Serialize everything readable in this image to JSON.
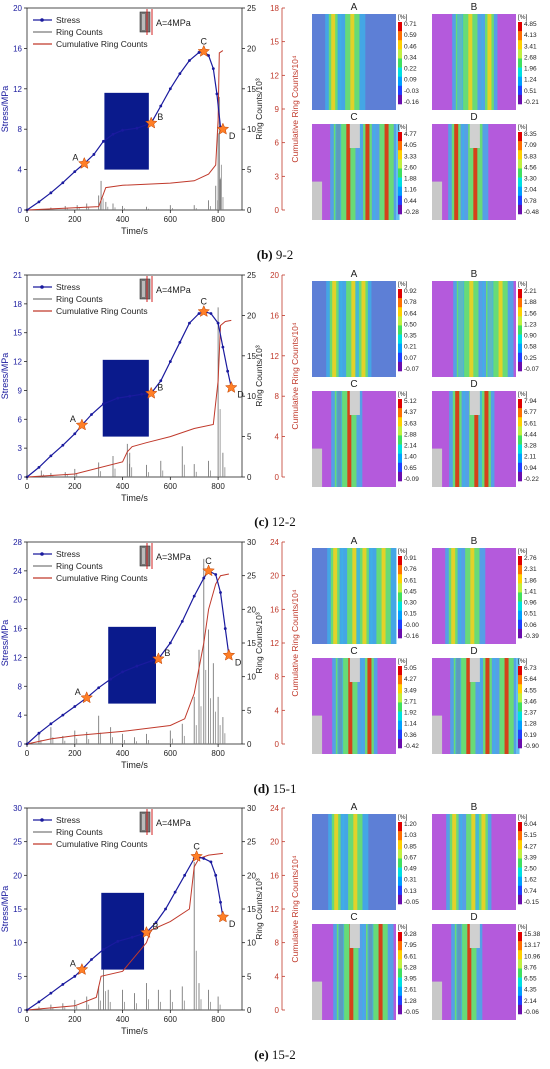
{
  "colors": {
    "stress": "#1a1a9e",
    "ring": "#7a7a7a",
    "cumulative": "#c0392b",
    "star": "#ff7f27",
    "block": "#0a1a8c"
  },
  "legend": {
    "stress": "Stress",
    "ring": "Ring Counts",
    "cumulative": "Cumulative Ring Counts"
  },
  "axes": {
    "xlabel": "Time/s",
    "ylabel_left": "Stress/MPa",
    "ylabel_right1": "Ring Counts/10³",
    "ylabel_right2": "Cumulative Ring Counts/10⁴"
  },
  "colorbar_unit": "[%]",
  "chart_data": [
    {
      "type": "line",
      "caption_label": "(b)",
      "caption_text": "9-2",
      "sigma": "A=4MPa",
      "x_ticks": [
        0,
        200,
        400,
        600,
        800
      ],
      "xlim": [
        0,
        900
      ],
      "ylim_stress": [
        0,
        20
      ],
      "y_ticks_stress": [
        0,
        4,
        8,
        12,
        16,
        20
      ],
      "ylim_ring": [
        0,
        25
      ],
      "y_ticks_ring": [
        0,
        5,
        10,
        15,
        20,
        25
      ],
      "ylim_cum": [
        0,
        18
      ],
      "y_ticks_cum": [
        0,
        3,
        6,
        9,
        12,
        15,
        18
      ],
      "stress_points": [
        [
          0,
          0
        ],
        [
          50,
          0.8
        ],
        [
          100,
          1.7
        ],
        [
          150,
          2.7
        ],
        [
          200,
          3.8
        ],
        [
          240,
          4.6
        ],
        [
          280,
          5.5
        ],
        [
          320,
          6.8
        ],
        [
          360,
          7.5
        ],
        [
          400,
          7.9
        ],
        [
          460,
          8.1
        ],
        [
          520,
          8.6
        ],
        [
          560,
          10.3
        ],
        [
          600,
          12.0
        ],
        [
          640,
          13.5
        ],
        [
          680,
          14.8
        ],
        [
          720,
          15.6
        ],
        [
          740,
          15.7
        ],
        [
          760,
          15.3
        ],
        [
          780,
          14.0
        ],
        [
          795,
          11.5
        ],
        [
          810,
          8.2
        ],
        [
          820,
          8.0
        ]
      ],
      "points": [
        {
          "label": "A",
          "x": 240,
          "y": 4.6
        },
        {
          "label": "B",
          "x": 520,
          "y": 8.6
        },
        {
          "label": "C",
          "x": 740,
          "y": 15.7
        },
        {
          "label": "D",
          "x": 820,
          "y": 8.0
        }
      ],
      "cumulative": [
        [
          0,
          0
        ],
        [
          300,
          0.3
        ],
        [
          330,
          2.0
        ],
        [
          400,
          2.2
        ],
        [
          600,
          2.4
        ],
        [
          700,
          2.6
        ],
        [
          760,
          3.2
        ],
        [
          790,
          4.0
        ],
        [
          800,
          8.0
        ],
        [
          805,
          14.0
        ],
        [
          820,
          14.2
        ]
      ],
      "ring_spikes": [
        [
          100,
          0.3
        ],
        [
          160,
          0.5
        ],
        [
          210,
          0.6
        ],
        [
          250,
          0.8
        ],
        [
          300,
          1.8
        ],
        [
          310,
          3.6
        ],
        [
          330,
          1.0
        ],
        [
          360,
          0.8
        ],
        [
          400,
          0.5
        ],
        [
          500,
          0.4
        ],
        [
          600,
          0.6
        ],
        [
          700,
          0.6
        ],
        [
          760,
          1.2
        ],
        [
          790,
          3.0
        ],
        [
          800,
          9.5
        ],
        [
          805,
          14.0
        ],
        [
          812,
          4.0
        ]
      ],
      "strain_maps": [
        {
          "label": "A",
          "colorbar": [
            "0.71",
            "0.59",
            "0.46",
            "0.34",
            "0.22",
            "0.09",
            "-0.03",
            "-0.16"
          ]
        },
        {
          "label": "B",
          "colorbar": [
            "4.85",
            "4.13",
            "3.41",
            "2.68",
            "1.96",
            "1.24",
            "0.51",
            "-0.21"
          ]
        },
        {
          "label": "C",
          "colorbar": [
            "4.77",
            "4.05",
            "3.33",
            "2.60",
            "1.88",
            "1.16",
            "0.44",
            "-0.28"
          ]
        },
        {
          "label": "D",
          "colorbar": [
            "8.35",
            "7.09",
            "5.83",
            "4.56",
            "3.30",
            "2.04",
            "0.78",
            "-0.48"
          ]
        }
      ]
    },
    {
      "type": "line",
      "caption_label": "(c)",
      "caption_text": "12-2",
      "sigma": "A=4MPa",
      "x_ticks": [
        0,
        200,
        400,
        600,
        800
      ],
      "xlim": [
        0,
        900
      ],
      "ylim_stress": [
        0,
        21
      ],
      "y_ticks_stress": [
        0,
        3,
        6,
        9,
        12,
        15,
        18,
        21
      ],
      "ylim_ring": [
        0,
        25
      ],
      "y_ticks_ring": [
        0,
        5,
        10,
        15,
        20,
        25
      ],
      "ylim_cum": [
        0,
        20
      ],
      "y_ticks_cum": [
        0,
        4,
        8,
        12,
        16,
        20
      ],
      "stress_points": [
        [
          0,
          0
        ],
        [
          50,
          1.0
        ],
        [
          100,
          2.2
        ],
        [
          150,
          3.3
        ],
        [
          200,
          4.5
        ],
        [
          230,
          5.4
        ],
        [
          270,
          6.5
        ],
        [
          320,
          7.6
        ],
        [
          380,
          8.2
        ],
        [
          430,
          8.4
        ],
        [
          480,
          8.6
        ],
        [
          520,
          8.7
        ],
        [
          560,
          10.0
        ],
        [
          600,
          12.0
        ],
        [
          640,
          14.0
        ],
        [
          680,
          16.0
        ],
        [
          720,
          17.0
        ],
        [
          740,
          17.2
        ],
        [
          770,
          17.0
        ],
        [
          800,
          16.0
        ],
        [
          820,
          13.5
        ],
        [
          840,
          11.0
        ],
        [
          855,
          9.3
        ]
      ],
      "points": [
        {
          "label": "A",
          "x": 230,
          "y": 5.4
        },
        {
          "label": "B",
          "x": 520,
          "y": 8.7
        },
        {
          "label": "C",
          "x": 740,
          "y": 17.2
        },
        {
          "label": "D",
          "x": 855,
          "y": 9.3
        }
      ],
      "cumulative": [
        [
          0,
          0
        ],
        [
          200,
          0.3
        ],
        [
          400,
          1.5
        ],
        [
          420,
          2.5
        ],
        [
          440,
          3.0
        ],
        [
          500,
          3.4
        ],
        [
          600,
          4.0
        ],
        [
          700,
          4.8
        ],
        [
          780,
          5.2
        ],
        [
          800,
          9.5
        ],
        [
          810,
          15.0
        ],
        [
          830,
          15.4
        ],
        [
          855,
          15.5
        ]
      ],
      "ring_spikes": [
        [
          60,
          0.8
        ],
        [
          100,
          0.5
        ],
        [
          160,
          0.6
        ],
        [
          200,
          1.0
        ],
        [
          300,
          1.8
        ],
        [
          360,
          2.6
        ],
        [
          420,
          4.1
        ],
        [
          430,
          3.0
        ],
        [
          500,
          1.5
        ],
        [
          560,
          2.0
        ],
        [
          650,
          3.8
        ],
        [
          700,
          1.6
        ],
        [
          760,
          2.0
        ],
        [
          800,
          21.0
        ],
        [
          820,
          3.0
        ]
      ],
      "strain_maps": [
        {
          "label": "A",
          "colorbar": [
            "0.92",
            "0.78",
            "0.64",
            "0.50",
            "0.35",
            "0.21",
            "0.07",
            "-0.07"
          ]
        },
        {
          "label": "B",
          "colorbar": [
            "2.21",
            "1.88",
            "1.56",
            "1.23",
            "0.90",
            "0.58",
            "0.25",
            "-0.07"
          ]
        },
        {
          "label": "C",
          "colorbar": [
            "5.12",
            "4.37",
            "3.63",
            "2.88",
            "2.14",
            "1.40",
            "0.65",
            "-0.09"
          ]
        },
        {
          "label": "D",
          "colorbar": [
            "7.94",
            "6.77",
            "5.61",
            "4.44",
            "3.28",
            "2.11",
            "0.94",
            "-0.22"
          ]
        }
      ]
    },
    {
      "type": "line",
      "caption_label": "(d)",
      "caption_text": "15-1",
      "sigma": "A=3MPa",
      "x_ticks": [
        0,
        200,
        400,
        600,
        800
      ],
      "xlim": [
        0,
        900
      ],
      "ylim_stress": [
        0,
        28
      ],
      "y_ticks_stress": [
        0,
        4,
        8,
        12,
        16,
        20,
        24,
        28
      ],
      "ylim_ring": [
        0,
        30
      ],
      "y_ticks_ring": [
        0,
        5,
        10,
        15,
        20,
        25,
        30
      ],
      "ylim_cum": [
        0,
        24
      ],
      "y_ticks_cum": [
        0,
        4,
        8,
        12,
        16,
        20,
        24
      ],
      "stress_points": [
        [
          0,
          0
        ],
        [
          50,
          1.5
        ],
        [
          100,
          2.8
        ],
        [
          150,
          4.0
        ],
        [
          200,
          5.2
        ],
        [
          250,
          6.4
        ],
        [
          300,
          7.8
        ],
        [
          350,
          9.0
        ],
        [
          400,
          10.0
        ],
        [
          460,
          10.8
        ],
        [
          520,
          11.5
        ],
        [
          550,
          11.8
        ],
        [
          600,
          14.0
        ],
        [
          650,
          17.0
        ],
        [
          700,
          20.5
        ],
        [
          740,
          23.0
        ],
        [
          760,
          24.0
        ],
        [
          790,
          23.5
        ],
        [
          810,
          21.0
        ],
        [
          830,
          16.0
        ],
        [
          845,
          12.3
        ]
      ],
      "points": [
        {
          "label": "A",
          "x": 250,
          "y": 6.4
        },
        {
          "label": "B",
          "x": 550,
          "y": 11.8
        },
        {
          "label": "C",
          "x": 760,
          "y": 24.0
        },
        {
          "label": "D",
          "x": 845,
          "y": 12.3
        }
      ],
      "cumulative": [
        [
          0,
          0
        ],
        [
          100,
          0.6
        ],
        [
          200,
          1.0
        ],
        [
          400,
          1.5
        ],
        [
          600,
          2.2
        ],
        [
          660,
          3.0
        ],
        [
          700,
          6.0
        ],
        [
          740,
          12.0
        ],
        [
          760,
          16.0
        ],
        [
          790,
          19.0
        ],
        [
          810,
          20.0
        ],
        [
          845,
          20.2
        ]
      ],
      "ring_spikes": [
        [
          50,
          1.5
        ],
        [
          100,
          2.5
        ],
        [
          150,
          1.2
        ],
        [
          200,
          2.0
        ],
        [
          250,
          1.8
        ],
        [
          300,
          4.2
        ],
        [
          350,
          2.5
        ],
        [
          400,
          1.5
        ],
        [
          450,
          1.0
        ],
        [
          500,
          1.5
        ],
        [
          600,
          2.0
        ],
        [
          650,
          3.0
        ],
        [
          700,
          7.0
        ],
        [
          720,
          14.0
        ],
        [
          740,
          27.5
        ],
        [
          760,
          17.0
        ],
        [
          780,
          12.0
        ],
        [
          800,
          7.0
        ],
        [
          820,
          4.0
        ]
      ],
      "strain_maps": [
        {
          "label": "A",
          "colorbar": [
            "0.91",
            "0.76",
            "0.61",
            "0.45",
            "0.30",
            "0.15",
            "-0.00",
            "-0.16"
          ]
        },
        {
          "label": "B",
          "colorbar": [
            "2.76",
            "2.31",
            "1.86",
            "1.41",
            "0.96",
            "0.51",
            "0.06",
            "-0.39"
          ]
        },
        {
          "label": "C",
          "colorbar": [
            "5.05",
            "4.27",
            "3.49",
            "2.71",
            "1.92",
            "1.14",
            "0.36",
            "-0.42"
          ]
        },
        {
          "label": "D",
          "colorbar": [
            "6.73",
            "5.64",
            "4.55",
            "3.46",
            "2.37",
            "1.28",
            "0.19",
            "-0.90"
          ]
        }
      ]
    },
    {
      "type": "line",
      "caption_label": "(e)",
      "caption_text": "15-2",
      "sigma": "A=4MPa",
      "x_ticks": [
        0,
        200,
        400,
        600,
        800
      ],
      "xlim": [
        0,
        900
      ],
      "ylim_stress": [
        0,
        30
      ],
      "y_ticks_stress": [
        0,
        5,
        10,
        15,
        20,
        25,
        30
      ],
      "ylim_ring": [
        0,
        30
      ],
      "y_ticks_ring": [
        0,
        5,
        10,
        15,
        20,
        25,
        30
      ],
      "ylim_cum": [
        0,
        24
      ],
      "y_ticks_cum": [
        0,
        4,
        8,
        12,
        16,
        20,
        24
      ],
      "stress_points": [
        [
          0,
          0
        ],
        [
          50,
          1.2
        ],
        [
          100,
          2.5
        ],
        [
          150,
          3.8
        ],
        [
          200,
          5.0
        ],
        [
          230,
          6.0
        ],
        [
          270,
          7.5
        ],
        [
          320,
          9.0
        ],
        [
          380,
          10.2
        ],
        [
          440,
          10.8
        ],
        [
          500,
          11.5
        ],
        [
          540,
          13.0
        ],
        [
          580,
          15.0
        ],
        [
          620,
          17.5
        ],
        [
          660,
          20.0
        ],
        [
          700,
          22.5
        ],
        [
          710,
          22.8
        ],
        [
          740,
          22.5
        ],
        [
          770,
          22.0
        ],
        [
          790,
          20.0
        ],
        [
          810,
          16.0
        ],
        [
          820,
          13.8
        ]
      ],
      "points": [
        {
          "label": "A",
          "x": 230,
          "y": 6.0
        },
        {
          "label": "B",
          "x": 500,
          "y": 11.5
        },
        {
          "label": "C",
          "x": 710,
          "y": 22.8
        },
        {
          "label": "D",
          "x": 820,
          "y": 13.8
        }
      ],
      "cumulative": [
        [
          0,
          0
        ],
        [
          200,
          0.5
        ],
        [
          290,
          1.5
        ],
        [
          310,
          4.0
        ],
        [
          400,
          4.6
        ],
        [
          500,
          8.0
        ],
        [
          520,
          9.5
        ],
        [
          600,
          10.5
        ],
        [
          680,
          12.0
        ],
        [
          700,
          17.0
        ],
        [
          720,
          18.0
        ],
        [
          760,
          18.4
        ],
        [
          820,
          18.6
        ]
      ],
      "ring_spikes": [
        [
          50,
          0.5
        ],
        [
          100,
          0.8
        ],
        [
          150,
          1.0
        ],
        [
          200,
          1.5
        ],
        [
          250,
          2.0
        ],
        [
          300,
          3.5
        ],
        [
          320,
          7.0
        ],
        [
          340,
          3.0
        ],
        [
          400,
          3.0
        ],
        [
          450,
          2.5
        ],
        [
          500,
          4.0
        ],
        [
          550,
          3.0
        ],
        [
          600,
          3.0
        ],
        [
          650,
          3.5
        ],
        [
          700,
          22.0
        ],
        [
          720,
          4.0
        ],
        [
          760,
          3.0
        ],
        [
          800,
          2.0
        ]
      ],
      "strain_maps": [
        {
          "label": "A",
          "colorbar": [
            "1.20",
            "1.03",
            "0.85",
            "0.67",
            "0.49",
            "0.31",
            "0.13",
            "-0.05"
          ]
        },
        {
          "label": "B",
          "colorbar": [
            "6.04",
            "5.15",
            "4.27",
            "3.39",
            "2.50",
            "1.62",
            "0.74",
            "-0.15"
          ]
        },
        {
          "label": "C",
          "colorbar": [
            "9.28",
            "7.95",
            "6.61",
            "5.28",
            "3.95",
            "2.61",
            "1.28",
            "-0.05"
          ]
        },
        {
          "label": "D",
          "colorbar": [
            "15.38",
            "13.17",
            "10.96",
            "8.76",
            "6.55",
            "4.35",
            "2.14",
            "-0.06"
          ]
        }
      ]
    }
  ]
}
